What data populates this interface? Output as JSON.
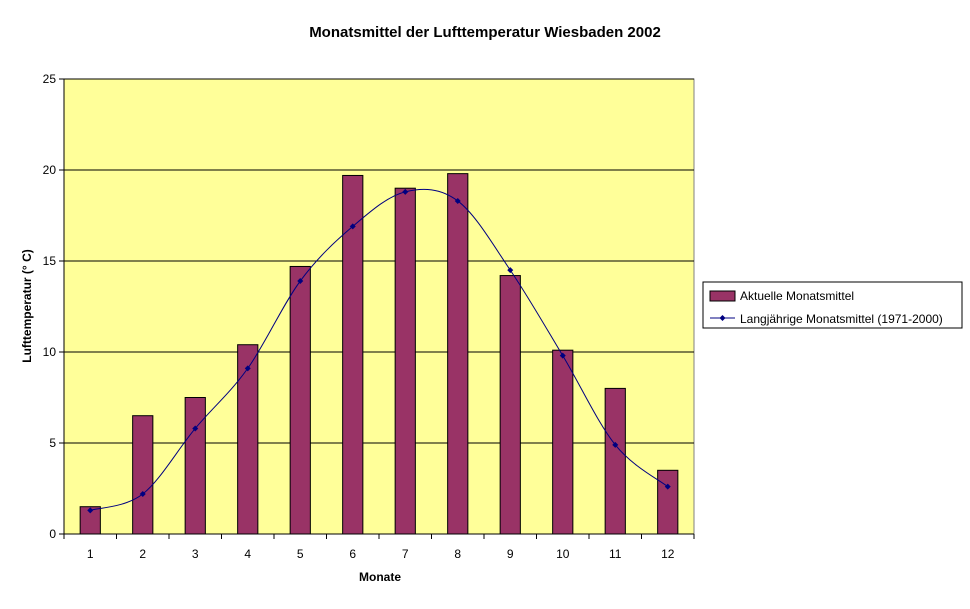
{
  "chart_data": {
    "type": "bar",
    "title": "Monatsmittel der Lufttemperatur  Wiesbaden 2002",
    "xlabel": "Monate",
    "ylabel": "Lufttemperatur (° C)",
    "categories": [
      "1",
      "2",
      "3",
      "4",
      "5",
      "6",
      "7",
      "8",
      "9",
      "10",
      "11",
      "12"
    ],
    "ylim": [
      0,
      25
    ],
    "yticks": [
      "0",
      "5",
      "10",
      "15",
      "20",
      "25"
    ],
    "grid": true,
    "legend_position": "right",
    "series": [
      {
        "name": "Aktuelle Monatsmittel",
        "kind": "bar",
        "color": "#993366",
        "values": [
          1.5,
          6.5,
          7.5,
          10.4,
          14.7,
          19.7,
          19.0,
          19.8,
          14.2,
          10.1,
          8.0,
          3.5
        ]
      },
      {
        "name": "Langjährige Monatsmittel (1971-2000)",
        "kind": "line",
        "color": "#000080",
        "values": [
          1.3,
          2.2,
          5.8,
          9.1,
          13.9,
          16.9,
          18.8,
          18.3,
          14.5,
          9.8,
          4.9,
          2.6
        ]
      }
    ],
    "colors": {
      "plot_background": "#FFFF99",
      "gridline": "#000000"
    }
  }
}
